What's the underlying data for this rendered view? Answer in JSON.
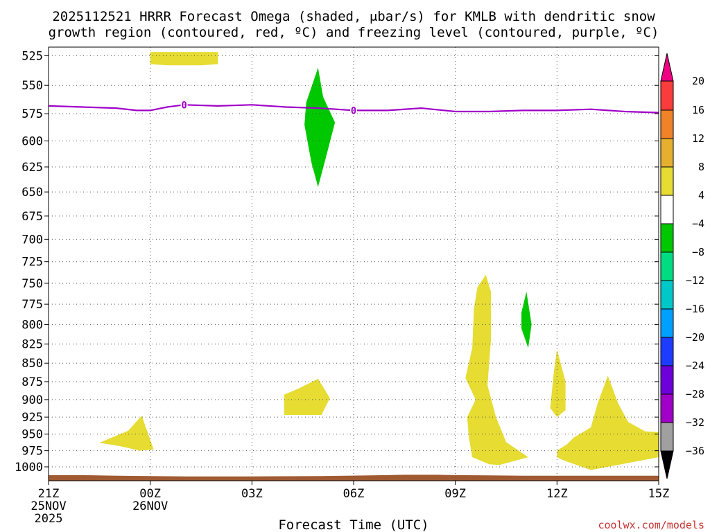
{
  "title_line1": "2025112521 HRRR Forecast Omega (shaded, μbar/s) for KMLB with dendritic snow",
  "title_line2": "growth region (contoured, red, ºC) and freezing level (contoured, purple, ºC)",
  "credit": "coolwx.com/models",
  "chart_data": {
    "type": "heatmap",
    "xlabel": "Forecast Time (UTC)",
    "x_ticks": [
      {
        "hour": 0,
        "lines": [
          "21Z",
          "25NOV",
          "2025"
        ]
      },
      {
        "hour": 3,
        "lines": [
          "00Z",
          "26NOV"
        ]
      },
      {
        "hour": 6,
        "lines": [
          "03Z"
        ]
      },
      {
        "hour": 9,
        "lines": [
          "06Z"
        ]
      },
      {
        "hour": 12,
        "lines": [
          "09Z"
        ]
      },
      {
        "hour": 15,
        "lines": [
          "12Z"
        ]
      },
      {
        "hour": 18,
        "lines": [
          "15Z"
        ]
      }
    ],
    "xlim": [
      0,
      18
    ],
    "y_ticks": [
      525,
      550,
      575,
      600,
      625,
      650,
      675,
      700,
      725,
      750,
      775,
      800,
      825,
      850,
      875,
      900,
      925,
      950,
      975,
      1000
    ],
    "ylim": [
      1022,
      518
    ],
    "y_scale": "log",
    "grid": true,
    "colorbar": {
      "bands": [
        {
          "lo": null,
          "hi": -36,
          "color": "#000000"
        },
        {
          "lo": -36,
          "hi": -32,
          "color": "#a0a0a0"
        },
        {
          "lo": -32,
          "hi": -28,
          "color": "#a000c8"
        },
        {
          "lo": -28,
          "hi": -24,
          "color": "#6e00dc"
        },
        {
          "lo": -24,
          "hi": -20,
          "color": "#1e3cff"
        },
        {
          "lo": -20,
          "hi": -16,
          "color": "#00a0ff"
        },
        {
          "lo": -16,
          "hi": -12,
          "color": "#00c8c8"
        },
        {
          "lo": -12,
          "hi": -8,
          "color": "#00dc82"
        },
        {
          "lo": -8,
          "hi": -4,
          "color": "#00c800"
        },
        {
          "lo": -4,
          "hi": 4,
          "color": "#ffffff"
        },
        {
          "lo": 4,
          "hi": 8,
          "color": "#e6dc32"
        },
        {
          "lo": 8,
          "hi": 12,
          "color": "#e6af2d"
        },
        {
          "lo": 12,
          "hi": 16,
          "color": "#f08228"
        },
        {
          "lo": 16,
          "hi": 20,
          "color": "#fa3c3c"
        },
        {
          "lo": 20,
          "hi": null,
          "color": "#f00082"
        }
      ],
      "labels": [
        20,
        16,
        12,
        8,
        4,
        -4,
        -8,
        -12,
        -16,
        -20,
        -24,
        -28,
        -32,
        -36
      ]
    },
    "freezing_level": {
      "color": "#a000c8",
      "label": "0",
      "label_at_hours": [
        4,
        9
      ],
      "points": [
        [
          0,
          568
        ],
        [
          1,
          569
        ],
        [
          2,
          570
        ],
        [
          2.6,
          572
        ],
        [
          3,
          572
        ],
        [
          3.5,
          569
        ],
        [
          4,
          567
        ],
        [
          5,
          568
        ],
        [
          6,
          567
        ],
        [
          7,
          569
        ],
        [
          8,
          570
        ],
        [
          9,
          572
        ],
        [
          10,
          572
        ],
        [
          11,
          570
        ],
        [
          12,
          573
        ],
        [
          13,
          573
        ],
        [
          14,
          572
        ],
        [
          15,
          572
        ],
        [
          16,
          571
        ],
        [
          17,
          573
        ],
        [
          18,
          574
        ]
      ]
    },
    "surface_terrain": {
      "color": "#a05a32",
      "points": [
        [
          0,
          1013
        ],
        [
          1,
          1013
        ],
        [
          2,
          1014
        ],
        [
          3,
          1014.5
        ],
        [
          4,
          1015
        ],
        [
          6,
          1015
        ],
        [
          8,
          1014.5
        ],
        [
          10,
          1013
        ],
        [
          10.5,
          1012.5
        ],
        [
          11.5,
          1012.5
        ],
        [
          12,
          1013
        ],
        [
          13,
          1013.5
        ],
        [
          14,
          1014
        ],
        [
          16,
          1014
        ],
        [
          18,
          1014
        ]
      ]
    },
    "regions": [
      {
        "id": "upward-a",
        "omega_band": "4-8",
        "color": "#e6dc32",
        "points": [
          [
            3,
            522
          ],
          [
            5,
            522
          ],
          [
            5,
            532
          ],
          [
            4.5,
            533
          ],
          [
            3.5,
            533
          ],
          [
            3,
            532
          ]
        ]
      },
      {
        "id": "downward-a",
        "omega_band": "-8 to -4",
        "color": "#00c800",
        "points": [
          [
            7.95,
            535
          ],
          [
            8.1,
            560
          ],
          [
            8.45,
            583
          ],
          [
            8.15,
            620
          ],
          [
            7.95,
            645
          ],
          [
            7.75,
            620
          ],
          [
            7.55,
            585
          ],
          [
            7.6,
            565
          ]
        ]
      },
      {
        "id": "upward-b",
        "omega_band": "4-8",
        "color": "#e6dc32",
        "points": [
          [
            2.75,
            923
          ],
          [
            3.1,
            973
          ],
          [
            2.7,
            975
          ],
          [
            2.1,
            968
          ],
          [
            1.5,
            963
          ],
          [
            2.35,
            945
          ]
        ]
      },
      {
        "id": "upward-c",
        "omega_band": "4-8",
        "color": "#e6dc32",
        "points": [
          [
            7.95,
            871
          ],
          [
            8.3,
            898
          ],
          [
            8.05,
            922
          ],
          [
            7.35,
            922
          ],
          [
            6.95,
            922
          ],
          [
            6.95,
            893
          ],
          [
            7.4,
            884
          ]
        ]
      },
      {
        "id": "upward-d",
        "omega_band": "4-8",
        "color": "#e6dc32",
        "points": [
          [
            12.9,
            740
          ],
          [
            13.05,
            760
          ],
          [
            13.05,
            820
          ],
          [
            12.95,
            880
          ],
          [
            13.2,
            925
          ],
          [
            13.5,
            962
          ],
          [
            14.15,
            985
          ],
          [
            13.3,
            997
          ],
          [
            13.0,
            996
          ],
          [
            12.5,
            985
          ],
          [
            12.4,
            955
          ],
          [
            12.35,
            925
          ],
          [
            12.6,
            900
          ],
          [
            12.3,
            870
          ],
          [
            12.5,
            830
          ],
          [
            12.55,
            780
          ],
          [
            12.65,
            755
          ]
        ]
      },
      {
        "id": "downward-b",
        "omega_band": "-8 to -4",
        "color": "#00c800",
        "points": [
          [
            14.1,
            760
          ],
          [
            14.25,
            800
          ],
          [
            14.15,
            830
          ],
          [
            13.95,
            805
          ],
          [
            13.95,
            785
          ]
        ]
      },
      {
        "id": "upward-e",
        "omega_band": "4-8",
        "color": "#e6dc32",
        "points": [
          [
            15.0,
            832
          ],
          [
            15.25,
            875
          ],
          [
            15.25,
            915
          ],
          [
            15.0,
            925
          ],
          [
            14.8,
            912
          ],
          [
            14.9,
            865
          ]
        ]
      },
      {
        "id": "upward-f",
        "omega_band": "4-8",
        "color": "#e6dc32",
        "points": [
          [
            16.5,
            867
          ],
          [
            16.8,
            905
          ],
          [
            17.1,
            932
          ],
          [
            17.6,
            946
          ],
          [
            18,
            947
          ],
          [
            18,
            985
          ],
          [
            17.0,
            995
          ],
          [
            16.0,
            1005
          ],
          [
            15.2,
            990
          ],
          [
            15.0,
            985
          ],
          [
            15.0,
            975
          ],
          [
            15.3,
            965
          ],
          [
            15.5,
            955
          ],
          [
            16.0,
            940
          ],
          [
            16.2,
            905
          ]
        ]
      }
    ]
  }
}
